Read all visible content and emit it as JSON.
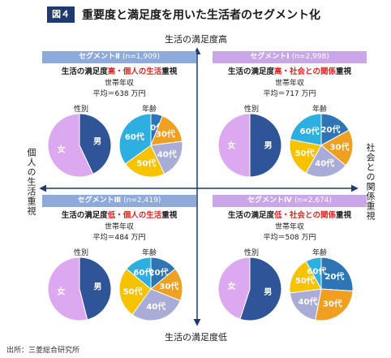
{
  "figure_badge": "図４",
  "title": "重要度と満足度を用いた生活者のセグメント化",
  "axes": {
    "top": "生活の満足度高",
    "bottom": "生活の満足度低",
    "left": "個人の生活重視",
    "right": "社会との関係重視"
  },
  "labels": {
    "gender": "性別",
    "age": "年齢",
    "income": "世帯年収"
  },
  "source": "出所：三菱総合研究所",
  "colors": {
    "female": "#dca8f0",
    "male": "#2f5598",
    "age20": "#2e75b6",
    "age30": "#f0a020",
    "age40": "#a9acd6",
    "age50": "#f7c200",
    "age60": "#2eafe2",
    "seg_bar_left": "#8eaadb",
    "seg_bar_right": "#c9a6e8",
    "accent": "#e02020"
  },
  "chart_data": [
    {
      "type": "pie",
      "segment": "セグメントⅡ",
      "n": "(n=1,909)",
      "focus_prefix": "生活の満足度",
      "focus_red": "高・個人の生活",
      "focus_suffix": "重視",
      "income_avg": "平均＝638 万円",
      "gender": [
        {
          "label": "女",
          "value": 57
        },
        {
          "label": "男",
          "value": 43
        }
      ],
      "age": [
        {
          "label": "20代",
          "value": 6
        },
        {
          "label": "30代",
          "value": 17
        },
        {
          "label": "40代",
          "value": 20
        },
        {
          "label": "50代",
          "value": 22
        },
        {
          "label": "60代",
          "value": 35
        }
      ]
    },
    {
      "type": "pie",
      "segment": "セグメントⅠ",
      "n": "(n=2,998)",
      "focus_prefix": "生活の満足度",
      "focus_red": "高・社会との関係",
      "focus_suffix": "重視",
      "income_avg": "平均＝717 万円",
      "gender": [
        {
          "label": "女",
          "value": 50
        },
        {
          "label": "男",
          "value": 50
        }
      ],
      "age": [
        {
          "label": "20代",
          "value": 17
        },
        {
          "label": "30代",
          "value": 19
        },
        {
          "label": "40代",
          "value": 22
        },
        {
          "label": "50代",
          "value": 20
        },
        {
          "label": "60代",
          "value": 22
        }
      ]
    },
    {
      "type": "pie",
      "segment": "セグメントⅢ",
      "n": "(n=2,419)",
      "focus_prefix": "生活の満足度",
      "focus_red": "低・個人の生活",
      "focus_suffix": "重視",
      "income_avg": "平均＝484 万円",
      "gender": [
        {
          "label": "女",
          "value": 54
        },
        {
          "label": "男",
          "value": 46
        }
      ],
      "age": [
        {
          "label": "20代",
          "value": 14
        },
        {
          "label": "30代",
          "value": 17
        },
        {
          "label": "40代",
          "value": 29
        },
        {
          "label": "50代",
          "value": 26
        },
        {
          "label": "60代",
          "value": 14
        }
      ]
    },
    {
      "type": "pie",
      "segment": "セグメントⅣ",
      "n": "(n=2,674)",
      "focus_prefix": "生活の満足度",
      "focus_red": "低・社会との関係",
      "focus_suffix": "重視",
      "income_avg": "平均＝508 万円",
      "gender": [
        {
          "label": "女",
          "value": 45
        },
        {
          "label": "男",
          "value": 55
        }
      ],
      "age": [
        {
          "label": "20代",
          "value": 26
        },
        {
          "label": "30代",
          "value": 27
        },
        {
          "label": "40代",
          "value": 20
        },
        {
          "label": "50代",
          "value": 19
        },
        {
          "label": "60代",
          "value": 8
        }
      ]
    }
  ]
}
